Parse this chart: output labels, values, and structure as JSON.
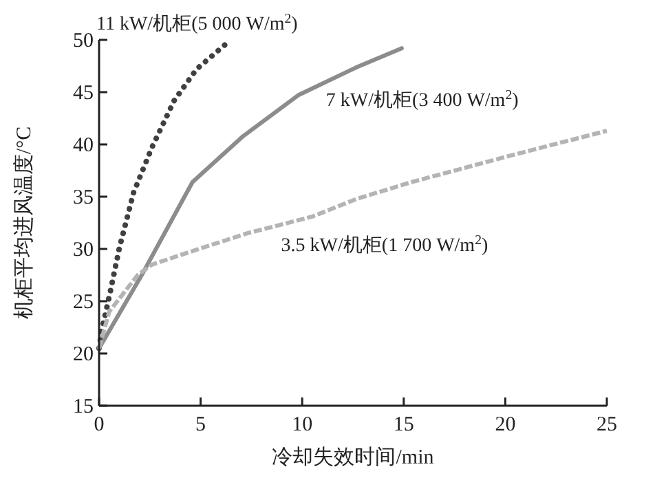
{
  "chart_data": {
    "type": "line",
    "xlabel": "冷却失效时间/min",
    "ylabel": "机柜平均进风温度/°C",
    "xlim": [
      0,
      25
    ],
    "xticks": [
      0,
      5,
      10,
      15,
      20,
      25
    ],
    "ylim": [
      15,
      50
    ],
    "yticks": [
      15,
      20,
      25,
      30,
      35,
      40,
      45,
      50
    ],
    "grid": false,
    "marker": "none",
    "series": [
      {
        "name": "11 kW/机柜(5 000 W/m$^{2}$)",
        "color": "#404040",
        "line_style": "dotted",
        "x": [
          0,
          0.13,
          0.54,
          1.0,
          1.7,
          2.6,
          3.7,
          4.8,
          6.3
        ],
        "values": [
          20.5,
          22.2,
          25.8,
          30.1,
          35.4,
          39.7,
          44.2,
          47.2,
          49.7
        ]
      },
      {
        "name": "7 kW/机柜(3 400 W/m$^{2}$)",
        "color": "#8c8c8c",
        "line_style": "solid",
        "x": [
          0,
          2.1,
          4.6,
          7.1,
          9.8,
          12.7,
          14.9
        ],
        "values": [
          20.5,
          27.5,
          36.4,
          40.8,
          44.7,
          47.4,
          49.2
        ]
      },
      {
        "name": "3.5 kW/机柜(1 700 W/m$^{2}$)",
        "color": "#b4b4b4",
        "line_style": "dashed",
        "x": [
          0,
          0.5,
          1.9,
          2.6,
          4.6,
          7.3,
          10.5,
          12.7,
          15.4,
          20,
          25
        ],
        "values": [
          20.5,
          24,
          27.5,
          28.5,
          29.8,
          31.5,
          33.1,
          34.8,
          36.4,
          38.8,
          41.3
        ]
      }
    ]
  }
}
